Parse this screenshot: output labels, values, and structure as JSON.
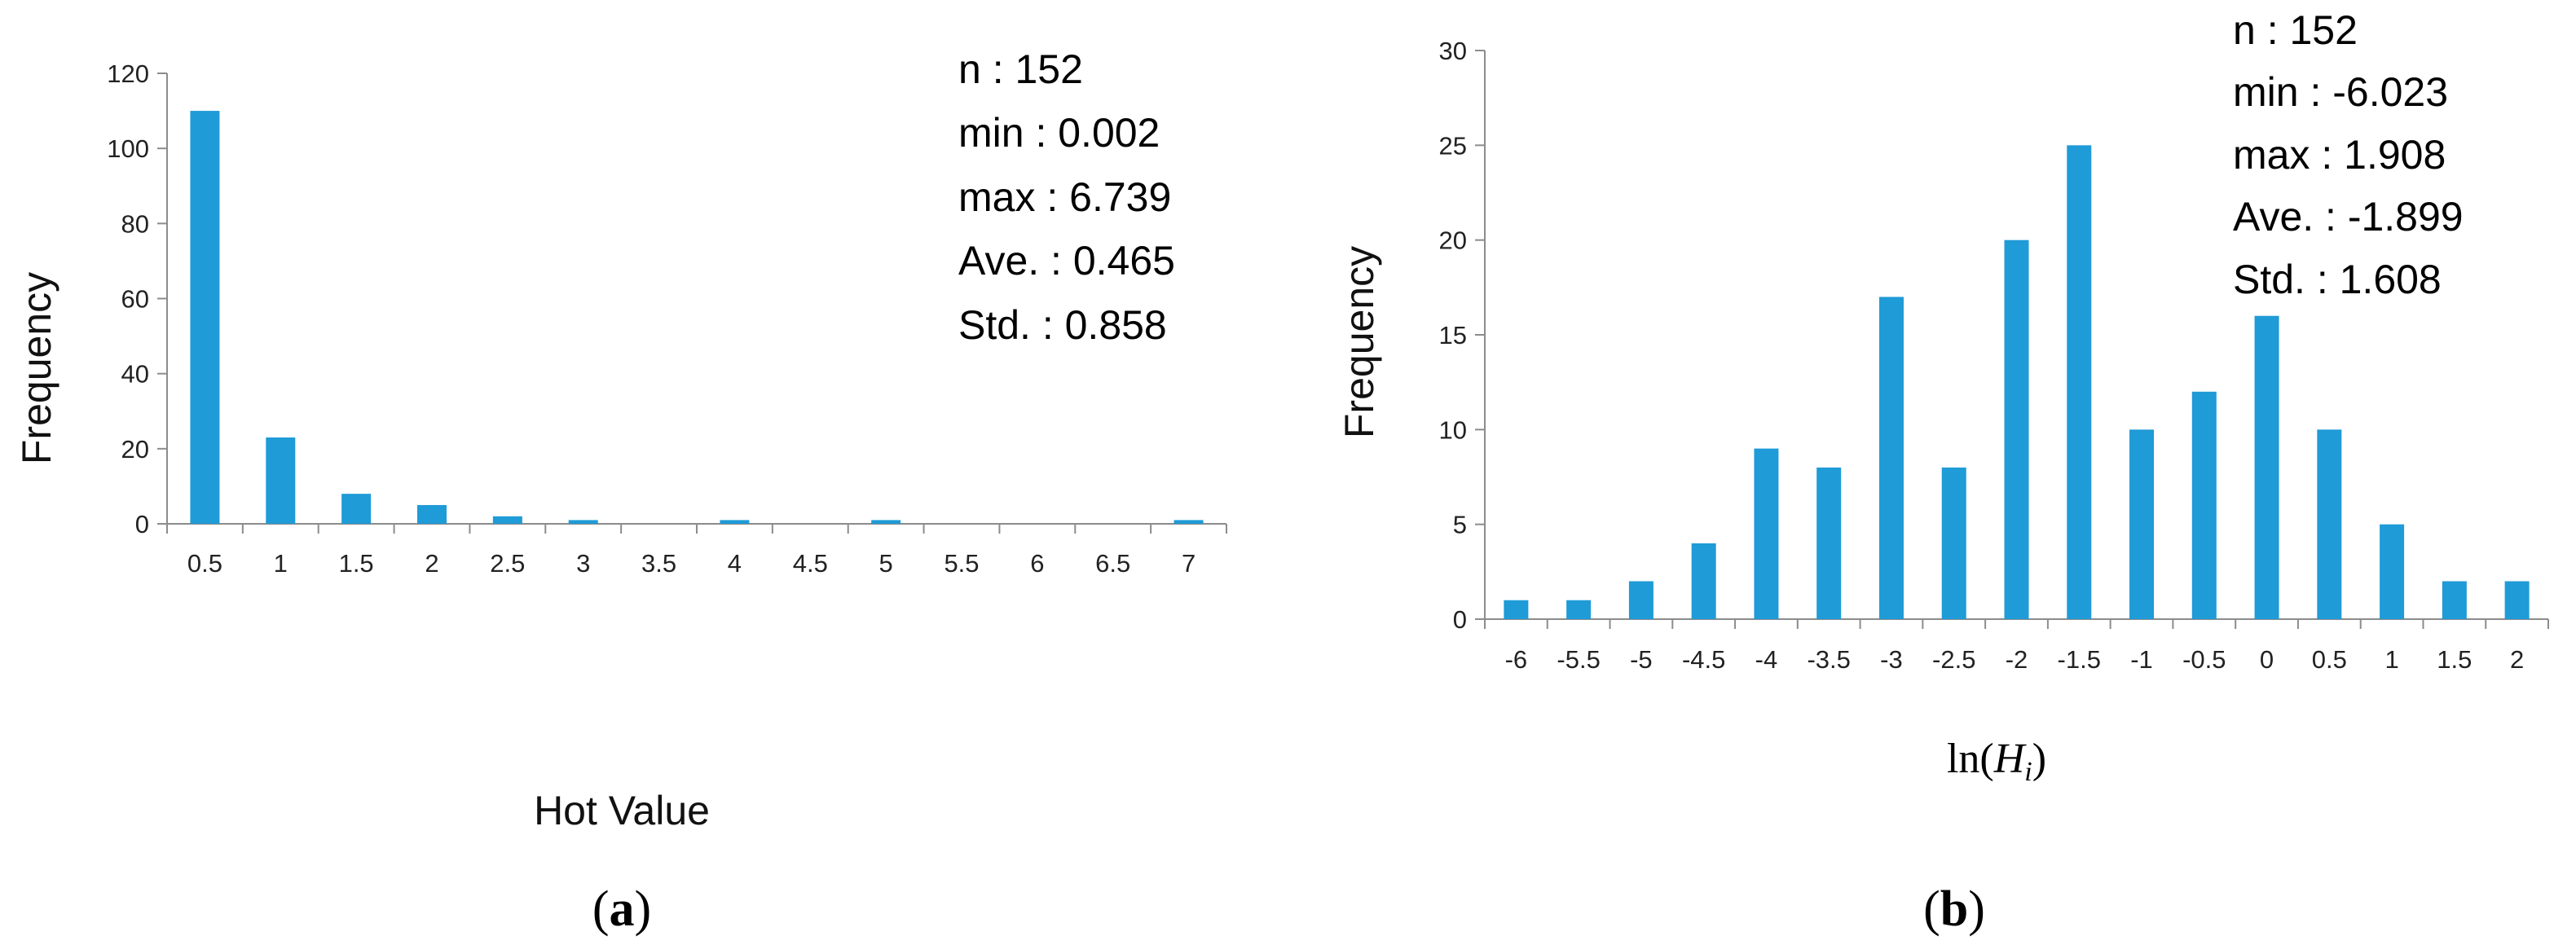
{
  "chart_data": [
    {
      "type": "bar",
      "panel_label": {
        "open": "(",
        "letter": "a",
        "close": ")"
      },
      "xlabel": "Hot Value",
      "ylabel": "Frequency",
      "categories": [
        "0.5",
        "1",
        "1.5",
        "2",
        "2.5",
        "3",
        "3.5",
        "4",
        "4.5",
        "5",
        "5.5",
        "6",
        "6.5",
        "7"
      ],
      "values": [
        110,
        23,
        8,
        5,
        2,
        1,
        0,
        1,
        0,
        1,
        0,
        0,
        0,
        1
      ],
      "ylim": [
        0,
        120
      ],
      "yticks": [
        "0",
        "20",
        "40",
        "60",
        "80",
        "100",
        "120"
      ],
      "bar_color": "#1f9bd7",
      "stats": [
        "n : 152",
        "min : 0.002",
        "max : 6.739",
        "Ave. : 0.465",
        "Std. : 0.858"
      ]
    },
    {
      "type": "bar",
      "panel_label": {
        "open": "(",
        "letter": "b",
        "close": ")"
      },
      "xlabel": {
        "func": "ln(",
        "var": "H",
        "sub": "i",
        "close": ")"
      },
      "ylabel": "Frequency",
      "categories": [
        "-6",
        "-5.5",
        "-5",
        "-4.5",
        "-4",
        "-3.5",
        "-3",
        "-2.5",
        "-2",
        "-1.5",
        "-1",
        "-0.5",
        "0",
        "0.5",
        "1",
        "1.5",
        "2"
      ],
      "values": [
        1,
        1,
        2,
        4,
        9,
        8,
        17,
        8,
        20,
        25,
        10,
        12,
        16,
        10,
        5,
        2,
        2
      ],
      "ylim": [
        0,
        30
      ],
      "yticks": [
        "0",
        "5",
        "10",
        "15",
        "20",
        "25",
        "30"
      ],
      "bar_color": "#1f9bd7",
      "stats": [
        "n : 152",
        "min : -6.023",
        "max : 1.908",
        "Ave. : -1.899",
        "Std. : 1.608"
      ]
    }
  ]
}
